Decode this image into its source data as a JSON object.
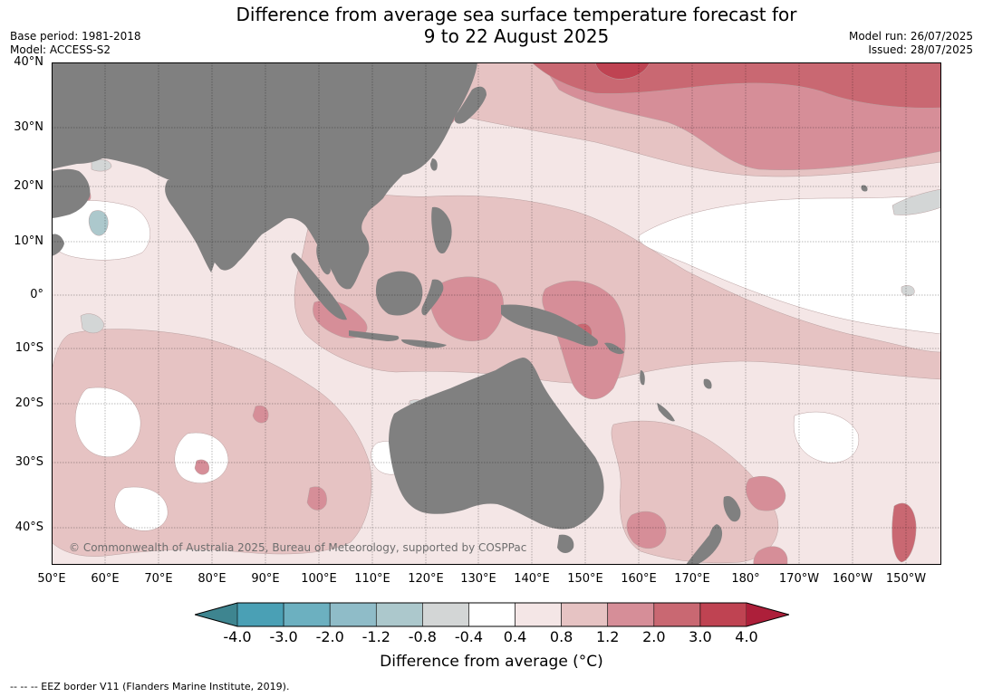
{
  "title": {
    "line1": "Difference from average sea surface temperature forecast for",
    "line2": "9 to 22 August 2025"
  },
  "meta": {
    "base_period": "Base period: 1981-2018",
    "model": "Model: ACCESS-S2",
    "model_run": "Model run: 26/07/2025",
    "issued": "Issued: 28/07/2025"
  },
  "map": {
    "lat_labels": [
      "40°N",
      "30°N",
      "20°N",
      "10°N",
      "0°",
      "10°S",
      "20°S",
      "30°S",
      "40°S"
    ],
    "lon_labels": [
      "50°E",
      "60°E",
      "70°E",
      "80°E",
      "90°E",
      "100°E",
      "110°E",
      "120°E",
      "130°E",
      "140°E",
      "150°E",
      "160°E",
      "170°E",
      "180°",
      "170°W",
      "160°W",
      "150°W"
    ],
    "copyright": "© Commonwealth of Australia 2025, Bureau of Meteorology, supported by COSPPac",
    "land_color": "#808080"
  },
  "colorbar": {
    "ticks": [
      "-4.0",
      "-3.0",
      "-2.0",
      "-1.2",
      "-0.8",
      "-0.4",
      "0.4",
      "0.8",
      "1.2",
      "2.0",
      "3.0",
      "4.0"
    ],
    "colors": [
      "#4aa0b5",
      "#6cb0c0",
      "#8fbcc8",
      "#acc8cc",
      "#d3d6d6",
      "#ffffff",
      "#f4e6e6",
      "#e6c3c3",
      "#d68e98",
      "#c96872",
      "#bf4352"
    ],
    "under_color": "#3e8590",
    "over_color": "#ad1f3a",
    "label": "Difference from average (°C)"
  },
  "footer": "-- -- -- EEZ border V11 (Flanders Marine Institute, 2019)."
}
